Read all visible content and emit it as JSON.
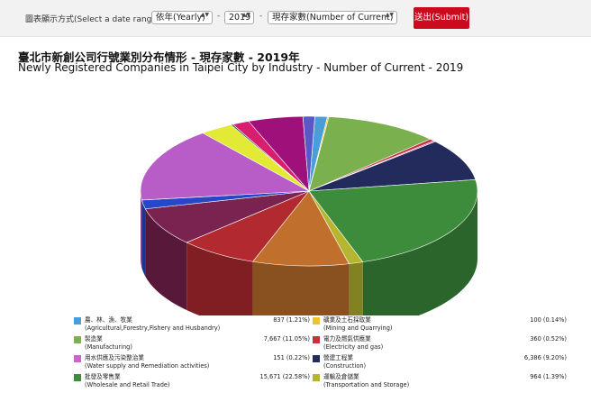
{
  "toolbar": {
    "label": "圖表顯示方式(Select a date range) :",
    "separator": "-",
    "period_select": "依年(Yearly)",
    "year_select": "2019",
    "measure_select": "現存家數(Number of Current)",
    "submit_label": "送出(Submit)",
    "arrow_glyph": "▲▼"
  },
  "chart_data": {
    "type": "pie",
    "title": "臺北市新創公司行號業別分布情形 - 現存家數 - 2019年",
    "subtitle": "Newly Registered Companies in Taipei City by Industry - Number of Current - 2019",
    "legend_position": "bottom",
    "slices": [
      {
        "name_zh": "農、林、漁、牧業",
        "name_en": "(Agricultural,Forestry,Fishery and Husbandry)",
        "value": 837,
        "label": "837 (1.21%)",
        "color": "#4a9ed8"
      },
      {
        "name_zh": "礦業及土石採取業",
        "name_en": "(Mining and Quarrying)",
        "value": 100,
        "label": "100 (0.14%)",
        "color": "#f2c12e"
      },
      {
        "name_zh": "製造業",
        "name_en": "(Manufacturing)",
        "value": 7667,
        "label": "7,667 (11.05%)",
        "color": "#7ab04e"
      },
      {
        "name_zh": "電力及燃氣供應業",
        "name_en": "(Electricity and gas)",
        "value": 360,
        "label": "360 (0.52%)",
        "color": "#c8303c"
      },
      {
        "name_zh": "用水供應及污染整治業",
        "name_en": "(Water supply and Remediation activities)",
        "value": 151,
        "label": "151 (0.22%)",
        "color": "#d063c8"
      },
      {
        "name_zh": "營建工程業",
        "name_en": "(Construction)",
        "value": 6386,
        "label": "6,386 (9.20%)",
        "color": "#232a5c"
      },
      {
        "name_zh": "批發及零售業",
        "name_en": "(Wholesale and Retail Trade)",
        "value": 15671,
        "label": "15,671 (22.58%)",
        "color": "#3c8c3c"
      },
      {
        "name_zh": "運輸及倉儲業",
        "name_en": "(Transportation and Storage)",
        "value": 964,
        "label": "964 (1.39%)",
        "color": "#b5b530"
      },
      {
        "name_zh": "",
        "name_en": "",
        "value": 6500,
        "label": "",
        "color": "#c0702c"
      },
      {
        "name_zh": "",
        "name_en": "",
        "value": 5300,
        "label": "",
        "color": "#b22a30"
      },
      {
        "name_zh": "",
        "name_en": "",
        "value": 5800,
        "label": "",
        "color": "#7a2250"
      },
      {
        "name_zh": "",
        "name_en": "",
        "value": 1350,
        "label": "",
        "color": "#2648c8"
      },
      {
        "name_zh": "",
        "name_en": "",
        "value": 11300,
        "label": "",
        "color": "#b85cc8"
      },
      {
        "name_zh": "",
        "name_en": "",
        "value": 2250,
        "label": "",
        "color": "#e2ea36"
      },
      {
        "name_zh": "",
        "name_en": "",
        "value": 140,
        "label": "",
        "color": "#1a4a48"
      },
      {
        "name_zh": "",
        "name_en": "",
        "value": 1150,
        "label": "",
        "color": "#d81e6e"
      },
      {
        "name_zh": "",
        "name_en": "",
        "value": 3700,
        "label": "",
        "color": "#a0107a"
      },
      {
        "name_zh": "",
        "name_en": "",
        "value": 800,
        "label": "",
        "color": "#5a58c8"
      }
    ]
  }
}
